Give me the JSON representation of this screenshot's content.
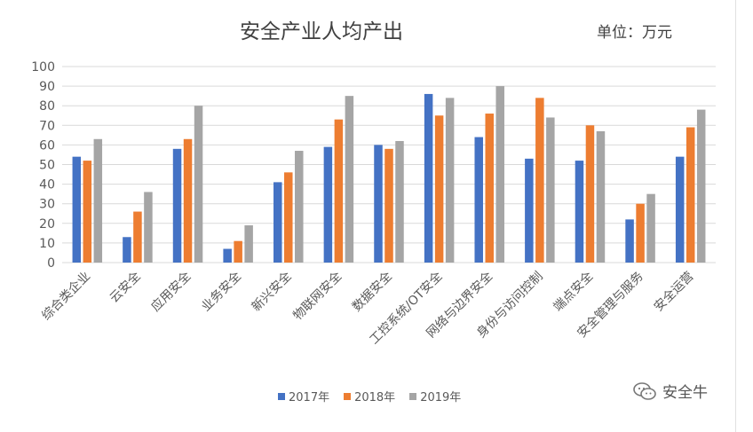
{
  "header": {
    "title": "安全产业人均产出",
    "unit": "单位：万元"
  },
  "watermark": {
    "text": "安全牛",
    "icon": "wechat-icon"
  },
  "colors": {
    "s2017": "#4472C4",
    "s2018": "#ED7D31",
    "s2019": "#A5A5A5",
    "grid": "#D9D9D9",
    "axis_text": "#595959"
  },
  "chart_data": {
    "type": "bar",
    "title": "安全产业人均产出",
    "unit": "单位：万元",
    "categories": [
      "综合类企业",
      "云安全",
      "应用安全",
      "业务安全",
      "新兴安全",
      "物联网安全",
      "数据安全",
      "工控系统/OT安全",
      "网络与边界安全",
      "身份与访问控制",
      "端点安全",
      "安全管理与服务",
      "安全运营"
    ],
    "series": [
      {
        "name": "2017年",
        "values": [
          54,
          13,
          58,
          7,
          41,
          59,
          60,
          86,
          64,
          53,
          52,
          22,
          54
        ]
      },
      {
        "name": "2018年",
        "values": [
          52,
          26,
          63,
          11,
          46,
          73,
          58,
          75,
          76,
          84,
          70,
          30,
          69
        ]
      },
      {
        "name": "2019年",
        "values": [
          63,
          36,
          80,
          19,
          57,
          85,
          62,
          84,
          90,
          74,
          67,
          35,
          78
        ]
      }
    ],
    "ylim": [
      0,
      100
    ],
    "yticks": [
      0,
      10,
      20,
      30,
      40,
      50,
      60,
      70,
      80,
      90,
      100
    ],
    "grid": true,
    "legend": "bottom"
  }
}
